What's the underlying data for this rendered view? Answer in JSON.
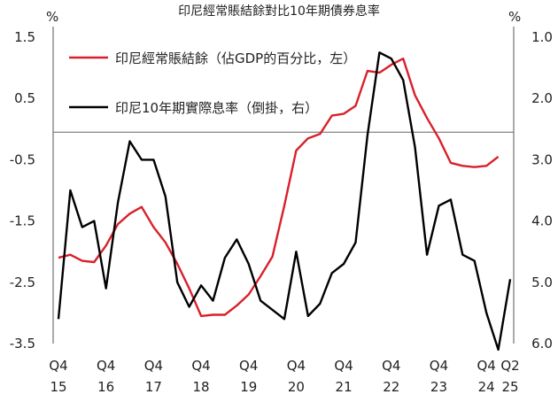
{
  "chart_data": {
    "type": "line",
    "title": "印尼經常賬結餘對比10年期債券息率",
    "left_unit": "%",
    "right_unit": "%",
    "left_axis": {
      "min": -3.5,
      "max": 1.5,
      "ticks": [
        "1.5",
        "0.5",
        "-0.5",
        "-1.5",
        "-2.5",
        "-3.5"
      ],
      "tick_values": [
        1.5,
        0.5,
        -0.5,
        -1.5,
        -2.5,
        -3.5
      ]
    },
    "right_axis": {
      "inverted": true,
      "min": 1.0,
      "max": 6.0,
      "ticks": [
        "1.0",
        "2.0",
        "3.0",
        "4.0",
        "5.0",
        "6.0"
      ],
      "tick_values": [
        1.0,
        2.0,
        3.0,
        4.0,
        5.0,
        6.0
      ]
    },
    "x_ticks": [
      {
        "q": "Q4",
        "yr": "15",
        "i": 0
      },
      {
        "q": "Q4",
        "yr": "16",
        "i": 4
      },
      {
        "q": "Q4",
        "yr": "17",
        "i": 8
      },
      {
        "q": "Q4",
        "yr": "18",
        "i": 12
      },
      {
        "q": "Q4",
        "yr": "19",
        "i": 16
      },
      {
        "q": "Q4",
        "yr": "20",
        "i": 20
      },
      {
        "q": "Q4",
        "yr": "21",
        "i": 24
      },
      {
        "q": "Q4",
        "yr": "22",
        "i": 28
      },
      {
        "q": "Q4",
        "yr": "23",
        "i": 32
      },
      {
        "q": "Q4",
        "yr": "24",
        "i": 36
      },
      {
        "q": "Q2",
        "yr": "25",
        "i": 38
      }
    ],
    "reference_line": {
      "axis": "left",
      "value": -0.05
    },
    "series": [
      {
        "name": "印尼經常賬結餘（佔GDP的百分比，左）",
        "axis": "left",
        "color": "#d9202a",
        "values": [
          -2.1,
          -2.05,
          -2.15,
          -2.17,
          -1.9,
          -1.55,
          -1.38,
          -1.27,
          -1.6,
          -1.85,
          -2.2,
          -2.6,
          -3.05,
          -3.03,
          -3.03,
          -2.88,
          -2.7,
          -2.4,
          -2.08,
          -1.25,
          -0.35,
          -0.15,
          -0.08,
          0.22,
          0.25,
          0.38,
          0.95,
          0.92,
          1.05,
          1.15,
          0.55,
          0.18,
          -0.15,
          -0.55,
          -0.6,
          -0.62,
          -0.6,
          -0.45
        ]
      },
      {
        "name": "印尼10年期實際息率（倒掛，右）",
        "axis": "right",
        "color": "#000000",
        "values": [
          5.6,
          3.5,
          4.1,
          4.0,
          5.1,
          3.7,
          2.7,
          3.0,
          3.0,
          3.6,
          5.0,
          5.4,
          5.05,
          5.3,
          4.6,
          4.3,
          4.7,
          5.3,
          5.45,
          5.6,
          4.5,
          5.55,
          5.35,
          4.85,
          4.7,
          4.35,
          2.6,
          1.25,
          1.35,
          1.7,
          2.8,
          4.55,
          3.75,
          3.65,
          4.55,
          4.65,
          5.5,
          6.1,
          4.95
        ]
      }
    ]
  }
}
